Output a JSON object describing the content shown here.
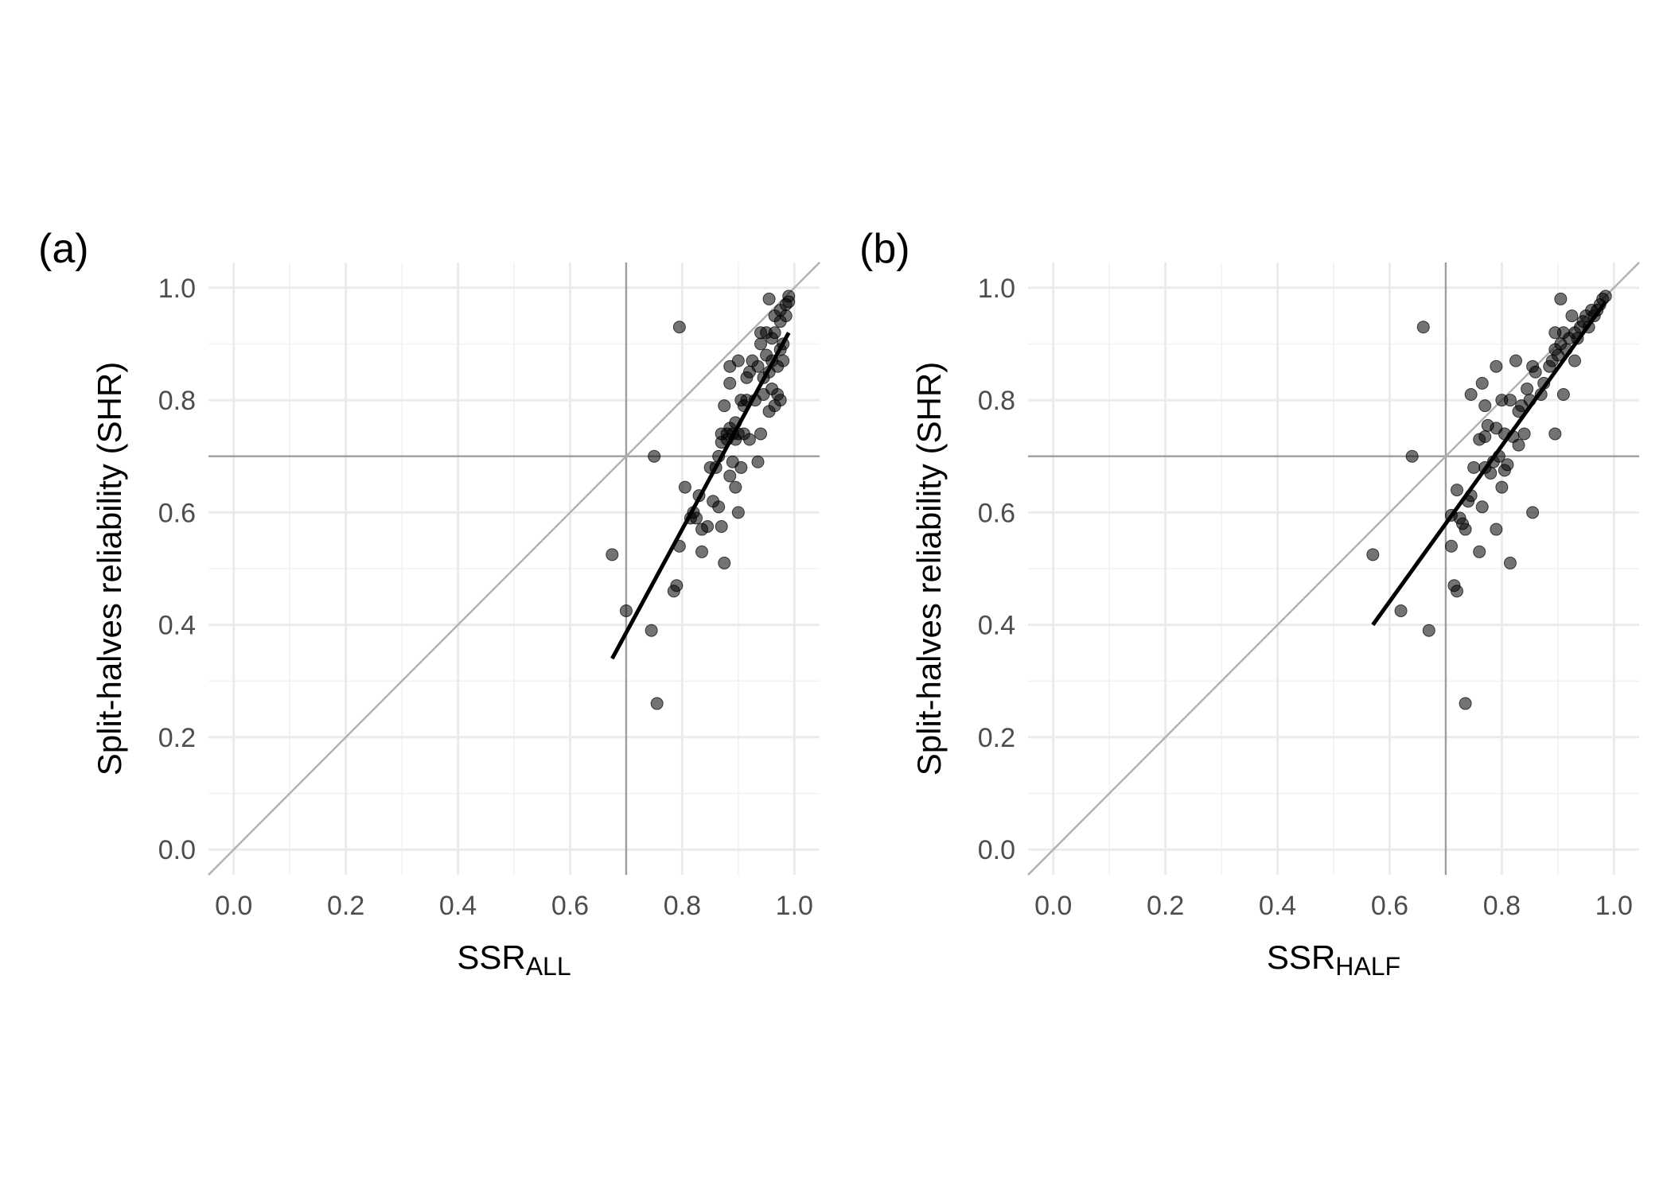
{
  "chart_data": [
    {
      "type": "scatter",
      "panel_label": "(a)",
      "xlabel_main": "SSR",
      "xlabel_sub": "ALL",
      "ylabel": "Split-halves reliability (SHR)",
      "xlim": [
        -0.045,
        1.045
      ],
      "ylim": [
        -0.045,
        1.045
      ],
      "x_ticks": [
        "0.0",
        "0.2",
        "0.4",
        "0.6",
        "0.8",
        "1.0"
      ],
      "y_ticks": [
        "0.0",
        "0.2",
        "0.4",
        "0.6",
        "0.8",
        "1.0"
      ],
      "grid": true,
      "reference_lines": {
        "vertical": 0.7,
        "horizontal": 0.7,
        "identity": true
      },
      "fit_line": {
        "x": [
          0.675,
          0.99
        ],
        "y": [
          0.34,
          0.92
        ]
      },
      "points": [
        [
          0.675,
          0.525
        ],
        [
          0.7,
          0.425
        ],
        [
          0.745,
          0.39
        ],
        [
          0.75,
          0.7
        ],
        [
          0.755,
          0.26
        ],
        [
          0.785,
          0.46
        ],
        [
          0.79,
          0.47
        ],
        [
          0.795,
          0.54
        ],
        [
          0.795,
          0.93
        ],
        [
          0.805,
          0.645
        ],
        [
          0.815,
          0.59
        ],
        [
          0.82,
          0.6
        ],
        [
          0.825,
          0.59
        ],
        [
          0.83,
          0.63
        ],
        [
          0.835,
          0.57
        ],
        [
          0.835,
          0.53
        ],
        [
          0.845,
          0.575
        ],
        [
          0.85,
          0.68
        ],
        [
          0.855,
          0.62
        ],
        [
          0.86,
          0.68
        ],
        [
          0.865,
          0.61
        ],
        [
          0.865,
          0.7
        ],
        [
          0.87,
          0.575
        ],
        [
          0.87,
          0.725
        ],
        [
          0.87,
          0.74
        ],
        [
          0.875,
          0.51
        ],
        [
          0.875,
          0.79
        ],
        [
          0.88,
          0.73
        ],
        [
          0.88,
          0.74
        ],
        [
          0.885,
          0.665
        ],
        [
          0.885,
          0.75
        ],
        [
          0.885,
          0.83
        ],
        [
          0.885,
          0.86
        ],
        [
          0.89,
          0.69
        ],
        [
          0.89,
          0.74
        ],
        [
          0.895,
          0.645
        ],
        [
          0.895,
          0.73
        ],
        [
          0.895,
          0.76
        ],
        [
          0.9,
          0.6
        ],
        [
          0.9,
          0.74
        ],
        [
          0.9,
          0.87
        ],
        [
          0.905,
          0.68
        ],
        [
          0.905,
          0.8
        ],
        [
          0.91,
          0.74
        ],
        [
          0.91,
          0.79
        ],
        [
          0.915,
          0.8
        ],
        [
          0.915,
          0.84
        ],
        [
          0.92,
          0.73
        ],
        [
          0.92,
          0.85
        ],
        [
          0.925,
          0.87
        ],
        [
          0.93,
          0.8
        ],
        [
          0.935,
          0.86
        ],
        [
          0.935,
          0.69
        ],
        [
          0.94,
          0.74
        ],
        [
          0.94,
          0.9
        ],
        [
          0.94,
          0.92
        ],
        [
          0.945,
          0.81
        ],
        [
          0.945,
          0.84
        ],
        [
          0.95,
          0.88
        ],
        [
          0.95,
          0.92
        ],
        [
          0.955,
          0.78
        ],
        [
          0.955,
          0.85
        ],
        [
          0.955,
          0.98
        ],
        [
          0.96,
          0.82
        ],
        [
          0.96,
          0.87
        ],
        [
          0.96,
          0.91
        ],
        [
          0.965,
          0.79
        ],
        [
          0.965,
          0.92
        ],
        [
          0.965,
          0.95
        ],
        [
          0.97,
          0.81
        ],
        [
          0.97,
          0.86
        ],
        [
          0.975,
          0.8
        ],
        [
          0.975,
          0.89
        ],
        [
          0.975,
          0.94
        ],
        [
          0.975,
          0.96
        ],
        [
          0.98,
          0.87
        ],
        [
          0.98,
          0.9
        ],
        [
          0.985,
          0.95
        ],
        [
          0.985,
          0.97
        ],
        [
          0.99,
          0.975
        ],
        [
          0.99,
          0.985
        ]
      ]
    },
    {
      "type": "scatter",
      "panel_label": "(b)",
      "xlabel_main": "SSR",
      "xlabel_sub": "HALF",
      "ylabel": "Split-halves reliability (SHR)",
      "xlim": [
        -0.045,
        1.045
      ],
      "ylim": [
        -0.045,
        1.045
      ],
      "x_ticks": [
        "0.0",
        "0.2",
        "0.4",
        "0.6",
        "0.8",
        "1.0"
      ],
      "y_ticks": [
        "0.0",
        "0.2",
        "0.4",
        "0.6",
        "0.8",
        "1.0"
      ],
      "grid": true,
      "reference_lines": {
        "vertical": 0.7,
        "horizontal": 0.7,
        "identity": true
      },
      "fit_line": {
        "x": [
          0.57,
          0.985
        ],
        "y": [
          0.4,
          0.975
        ]
      },
      "points": [
        [
          0.57,
          0.525
        ],
        [
          0.62,
          0.425
        ],
        [
          0.64,
          0.7
        ],
        [
          0.66,
          0.93
        ],
        [
          0.67,
          0.39
        ],
        [
          0.71,
          0.54
        ],
        [
          0.71,
          0.595
        ],
        [
          0.715,
          0.47
        ],
        [
          0.72,
          0.46
        ],
        [
          0.72,
          0.64
        ],
        [
          0.725,
          0.59
        ],
        [
          0.73,
          0.58
        ],
        [
          0.735,
          0.57
        ],
        [
          0.735,
          0.26
        ],
        [
          0.74,
          0.62
        ],
        [
          0.745,
          0.63
        ],
        [
          0.745,
          0.81
        ],
        [
          0.75,
          0.68
        ],
        [
          0.76,
          0.53
        ],
        [
          0.76,
          0.73
        ],
        [
          0.765,
          0.61
        ],
        [
          0.765,
          0.83
        ],
        [
          0.77,
          0.68
        ],
        [
          0.77,
          0.735
        ],
        [
          0.77,
          0.79
        ],
        [
          0.775,
          0.755
        ],
        [
          0.78,
          0.67
        ],
        [
          0.785,
          0.69
        ],
        [
          0.79,
          0.57
        ],
        [
          0.79,
          0.75
        ],
        [
          0.79,
          0.86
        ],
        [
          0.795,
          0.7
        ],
        [
          0.8,
          0.645
        ],
        [
          0.8,
          0.8
        ],
        [
          0.805,
          0.675
        ],
        [
          0.805,
          0.74
        ],
        [
          0.81,
          0.685
        ],
        [
          0.815,
          0.51
        ],
        [
          0.815,
          0.8
        ],
        [
          0.82,
          0.735
        ],
        [
          0.825,
          0.87
        ],
        [
          0.83,
          0.72
        ],
        [
          0.83,
          0.78
        ],
        [
          0.835,
          0.79
        ],
        [
          0.84,
          0.74
        ],
        [
          0.845,
          0.82
        ],
        [
          0.85,
          0.8
        ],
        [
          0.855,
          0.6
        ],
        [
          0.855,
          0.86
        ],
        [
          0.86,
          0.85
        ],
        [
          0.87,
          0.81
        ],
        [
          0.875,
          0.83
        ],
        [
          0.885,
          0.86
        ],
        [
          0.89,
          0.87
        ],
        [
          0.895,
          0.74
        ],
        [
          0.895,
          0.89
        ],
        [
          0.895,
          0.92
        ],
        [
          0.9,
          0.88
        ],
        [
          0.905,
          0.9
        ],
        [
          0.905,
          0.98
        ],
        [
          0.91,
          0.81
        ],
        [
          0.91,
          0.92
        ],
        [
          0.915,
          0.89
        ],
        [
          0.92,
          0.91
        ],
        [
          0.925,
          0.95
        ],
        [
          0.93,
          0.87
        ],
        [
          0.93,
          0.92
        ],
        [
          0.935,
          0.91
        ],
        [
          0.94,
          0.93
        ],
        [
          0.945,
          0.94
        ],
        [
          0.95,
          0.95
        ],
        [
          0.955,
          0.93
        ],
        [
          0.96,
          0.96
        ],
        [
          0.965,
          0.95
        ],
        [
          0.97,
          0.96
        ],
        [
          0.975,
          0.97
        ],
        [
          0.98,
          0.98
        ],
        [
          0.985,
          0.985
        ]
      ]
    }
  ]
}
